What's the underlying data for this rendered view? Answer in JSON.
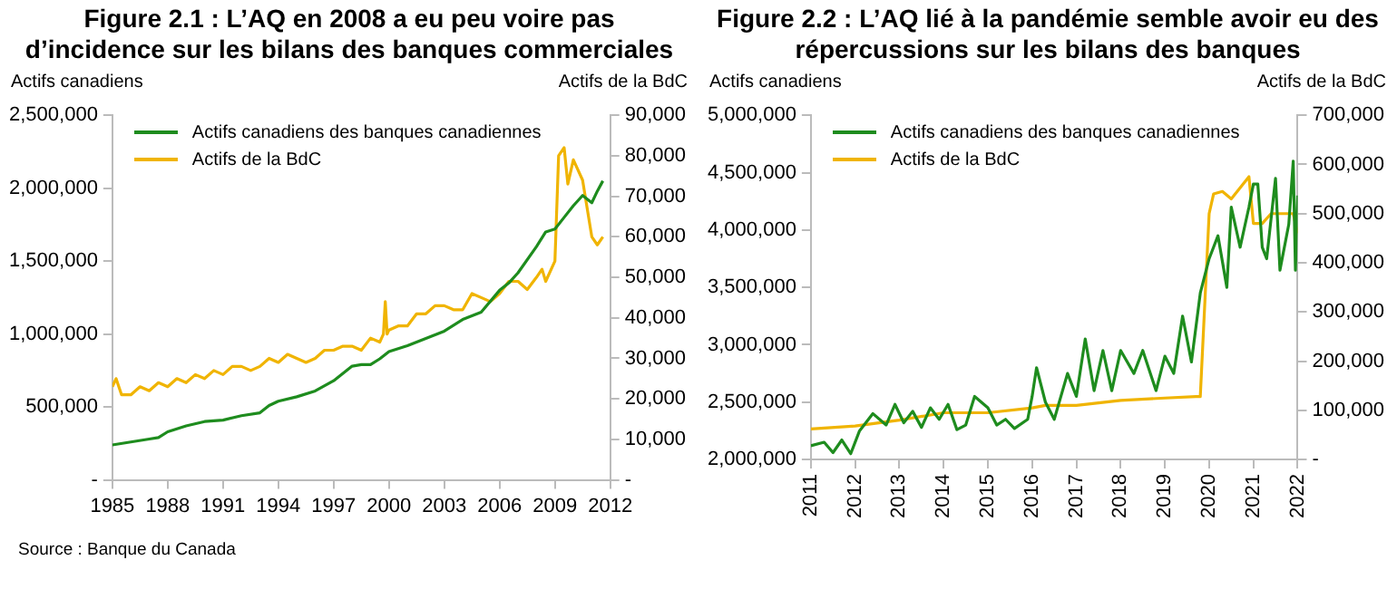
{
  "chart_data": [
    {
      "type": "line",
      "title": "Figure 2.1 : L’AQ en 2008 a eu peu voire pas d’incidence sur les bilans des banques commerciales",
      "ylabel": "Actifs canadiens",
      "y2label": "Actifs de la BdC",
      "legend": "top left",
      "grid": false,
      "marker": "none",
      "line_style": "solid",
      "xlim": [
        1985,
        2012
      ],
      "xticks": [
        1985,
        1988,
        1991,
        1994,
        1997,
        2000,
        2003,
        2006,
        2009,
        2012
      ],
      "ylim": [
        0,
        2500000
      ],
      "yticks": [
        {
          "value": 0,
          "label": "-"
        },
        {
          "value": 500000,
          "label": "500,000"
        },
        {
          "value": 1000000,
          "label": "1,000,000"
        },
        {
          "value": 1500000,
          "label": "1,500,000"
        },
        {
          "value": 2000000,
          "label": "2,000,000"
        },
        {
          "value": 2500000,
          "label": "2,500,000"
        }
      ],
      "y2lim": [
        0,
        90000
      ],
      "y2ticks": [
        {
          "value": 0,
          "label": "-"
        },
        {
          "value": 10000,
          "label": "10,000"
        },
        {
          "value": 20000,
          "label": "20,000"
        },
        {
          "value": 30000,
          "label": "30,000"
        },
        {
          "value": 40000,
          "label": "40,000"
        },
        {
          "value": 50000,
          "label": "50,000"
        },
        {
          "value": 60000,
          "label": "60,000"
        },
        {
          "value": 70000,
          "label": "70,000"
        },
        {
          "value": 80000,
          "label": "80,000"
        },
        {
          "value": 90000,
          "label": "90,000"
        }
      ],
      "annotations": [
        "Source : Banque du Canada"
      ],
      "series": [
        {
          "name": "Actifs canadiens des banques canadiennes",
          "color": "#1e8c1e",
          "x": [
            1985,
            1986,
            1987,
            1987.5,
            1988,
            1989,
            1990,
            1991,
            1992,
            1993,
            1993.5,
            1994,
            1995,
            1996,
            1997,
            1998,
            1998.5,
            1999,
            1999.5,
            2000,
            2001,
            2002,
            2003,
            2004,
            2005,
            2006,
            2006.5,
            2007,
            2008,
            2008.5,
            2009,
            2009.5,
            2010,
            2010.5,
            2011,
            2011.3,
            2011.6
          ],
          "values": [
            240000,
            260000,
            280000,
            290000,
            330000,
            370000,
            400000,
            410000,
            440000,
            460000,
            510000,
            540000,
            570000,
            610000,
            680000,
            780000,
            790000,
            790000,
            830000,
            880000,
            920000,
            970000,
            1020000,
            1100000,
            1150000,
            1300000,
            1350000,
            1420000,
            1600000,
            1700000,
            1720000,
            1800000,
            1880000,
            1950000,
            1900000,
            1980000,
            2050000
          ]
        },
        {
          "name": "Actifs de la BdC",
          "color": "#f0b400",
          "axis": "y2",
          "x": [
            1985,
            1985.2,
            1985.5,
            1986,
            1986.5,
            1987,
            1987.5,
            1988,
            1988.5,
            1989,
            1989.5,
            1990,
            1990.5,
            1991,
            1991.5,
            1992,
            1992.5,
            1993,
            1993.5,
            1994,
            1994.5,
            1995,
            1995.5,
            1996,
            1996.5,
            1997,
            1997.5,
            1998,
            1998.5,
            1999,
            1999.5,
            1999.7,
            1999.8,
            1999.9,
            2000,
            2000.5,
            2001,
            2001.5,
            2002,
            2002.5,
            2003,
            2003.5,
            2004,
            2004.5,
            2005,
            2005.5,
            2006,
            2006.5,
            2007,
            2007.5,
            2008,
            2008.3,
            2008.5,
            2009,
            2009.2,
            2009.5,
            2009.7,
            2010,
            2010.5,
            2011,
            2011.3,
            2011.6
          ],
          "values": [
            23000,
            25000,
            21000,
            21000,
            23000,
            22000,
            24000,
            23000,
            25000,
            24000,
            26000,
            25000,
            27000,
            26000,
            28000,
            28000,
            27000,
            28000,
            30000,
            29000,
            31000,
            30000,
            29000,
            30000,
            32000,
            32000,
            33000,
            33000,
            32000,
            35000,
            34000,
            36000,
            44000,
            36000,
            37000,
            38000,
            38000,
            41000,
            41000,
            43000,
            43000,
            42000,
            42000,
            46000,
            45000,
            44000,
            46000,
            49000,
            49000,
            47000,
            50000,
            52000,
            49000,
            54000,
            80000,
            82000,
            73000,
            79000,
            74000,
            60000,
            58000,
            60000
          ]
        }
      ]
    },
    {
      "type": "line",
      "title": "Figure 2.2 : L’AQ lié à la pandémie semble avoir eu des répercussions sur les bilans des banques",
      "ylabel": "Actifs canadiens",
      "y2label": "Actifs de la BdC",
      "legend": "top left",
      "grid": false,
      "marker": "none",
      "line_style": "solid",
      "xlim": [
        2011,
        2022
      ],
      "xticks": [
        2011,
        2012,
        2013,
        2014,
        2015,
        2016,
        2017,
        2018,
        2019,
        2020,
        2021,
        2022
      ],
      "ylim": [
        2000000,
        5000000
      ],
      "yticks": [
        {
          "value": 2000000,
          "label": "2,000,000"
        },
        {
          "value": 2500000,
          "label": "2,500,000"
        },
        {
          "value": 3000000,
          "label": "3,000,000"
        },
        {
          "value": 3500000,
          "label": "3,500,000"
        },
        {
          "value": 4000000,
          "label": "4,000,000"
        },
        {
          "value": 4500000,
          "label": "4,500,000"
        },
        {
          "value": 5000000,
          "label": "5,000,000"
        }
      ],
      "y2lim": [
        0,
        700000
      ],
      "y2ticks": [
        {
          "value": 0,
          "label": "-"
        },
        {
          "value": 100000,
          "label": "100,000"
        },
        {
          "value": 200000,
          "label": "200,000"
        },
        {
          "value": 300000,
          "label": "300,000"
        },
        {
          "value": 400000,
          "label": "400,000"
        },
        {
          "value": 500000,
          "label": "500,000"
        },
        {
          "value": 600000,
          "label": "600,000"
        },
        {
          "value": 700000,
          "label": "700,000"
        }
      ],
      "series": [
        {
          "name": "Actifs canadiens des banques canadiennes",
          "color": "#1e8c1e",
          "x": [
            2011,
            2011.3,
            2011.5,
            2011.7,
            2011.9,
            2012.1,
            2012.4,
            2012.7,
            2012.9,
            2013.1,
            2013.3,
            2013.5,
            2013.7,
            2013.9,
            2014.1,
            2014.3,
            2014.5,
            2014.7,
            2015,
            2015.2,
            2015.4,
            2015.6,
            2015.9,
            2016,
            2016.1,
            2016.3,
            2016.5,
            2016.8,
            2017,
            2017.2,
            2017.4,
            2017.6,
            2017.8,
            2018,
            2018.3,
            2018.5,
            2018.8,
            2019,
            2019.2,
            2019.4,
            2019.6,
            2019.8,
            2020,
            2020.2,
            2020.4,
            2020.5,
            2020.7,
            2020.9,
            2021,
            2021.1,
            2021.2,
            2021.3,
            2021.5,
            2021.6,
            2021.8,
            2021.9,
            2021.95,
            2022
          ],
          "values": [
            2120000,
            2150000,
            2060000,
            2170000,
            2050000,
            2250000,
            2400000,
            2300000,
            2480000,
            2320000,
            2420000,
            2280000,
            2450000,
            2350000,
            2480000,
            2260000,
            2300000,
            2550000,
            2450000,
            2300000,
            2350000,
            2270000,
            2350000,
            2550000,
            2800000,
            2500000,
            2350000,
            2750000,
            2550000,
            3050000,
            2600000,
            2950000,
            2600000,
            2950000,
            2750000,
            2950000,
            2600000,
            2900000,
            2750000,
            3250000,
            2850000,
            3450000,
            3750000,
            3950000,
            3500000,
            4200000,
            3850000,
            4200000,
            4400000,
            4400000,
            3850000,
            3750000,
            4450000,
            3650000,
            4050000,
            4600000,
            3650000,
            4300000
          ]
        },
        {
          "name": "Actifs de la BdC",
          "color": "#f0b400",
          "axis": "y2",
          "x": [
            2011,
            2012,
            2013,
            2014,
            2015,
            2016,
            2016.3,
            2017,
            2018,
            2019,
            2019.7,
            2019.8,
            2020,
            2020.1,
            2020.3,
            2020.5,
            2020.9,
            2021,
            2021.2,
            2021.4,
            2021.9,
            2022
          ],
          "values": [
            62000,
            68000,
            80000,
            95000,
            95000,
            105000,
            110000,
            110000,
            120000,
            125000,
            128000,
            128000,
            500000,
            540000,
            545000,
            530000,
            575000,
            480000,
            480000,
            500000,
            500000,
            460000
          ]
        }
      ]
    }
  ]
}
